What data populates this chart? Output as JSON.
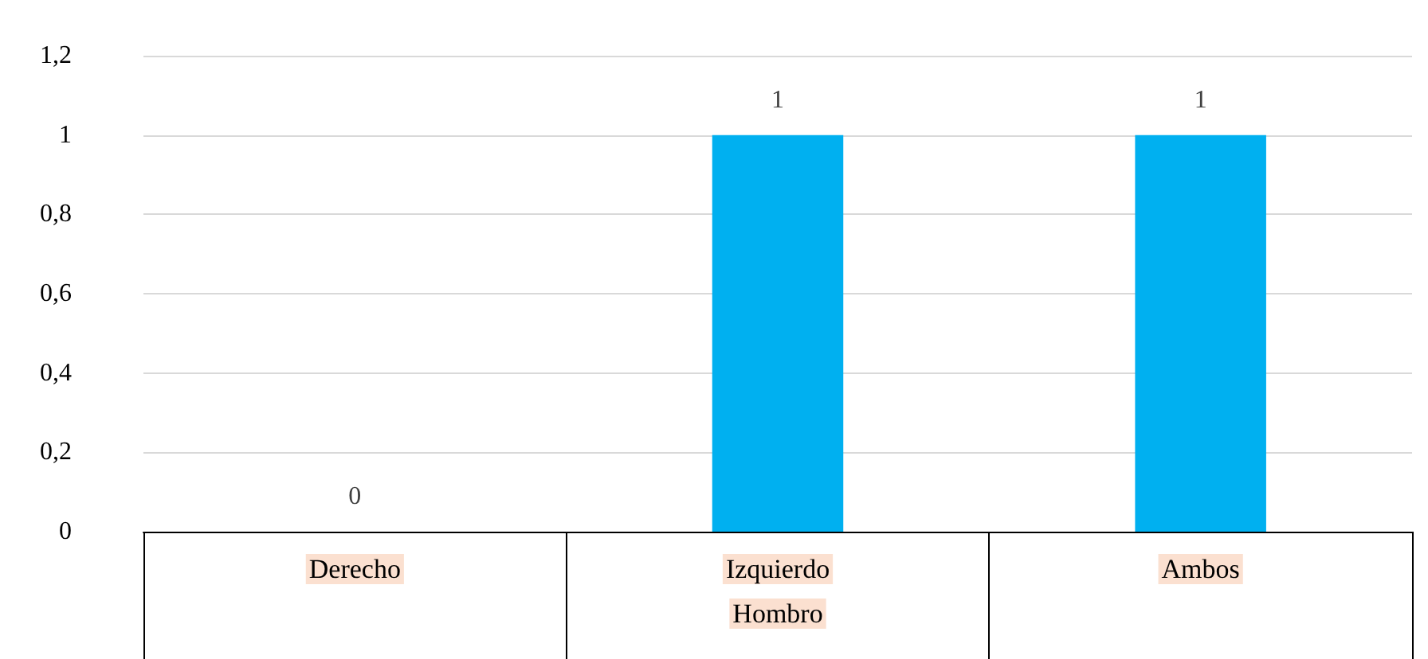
{
  "chart_data": {
    "type": "bar",
    "xlabel": "Hombro",
    "categories": [
      "Derecho",
      "Izquierdo",
      "Ambos"
    ],
    "values": [
      0,
      1,
      1
    ],
    "color": "#00b0f0",
    "ylim": [
      0,
      1.2
    ],
    "yticks": [
      {
        "value": 0,
        "label": "0"
      },
      {
        "value": 0.2,
        "label": "0,2"
      },
      {
        "value": 0.4,
        "label": "0,4"
      },
      {
        "value": 0.6,
        "label": "0,6"
      },
      {
        "value": 0.8,
        "label": "0,8"
      },
      {
        "value": 1,
        "label": "1"
      },
      {
        "value": 1.2,
        "label": "1,2"
      }
    ],
    "grid": "y",
    "data_labels": true
  }
}
